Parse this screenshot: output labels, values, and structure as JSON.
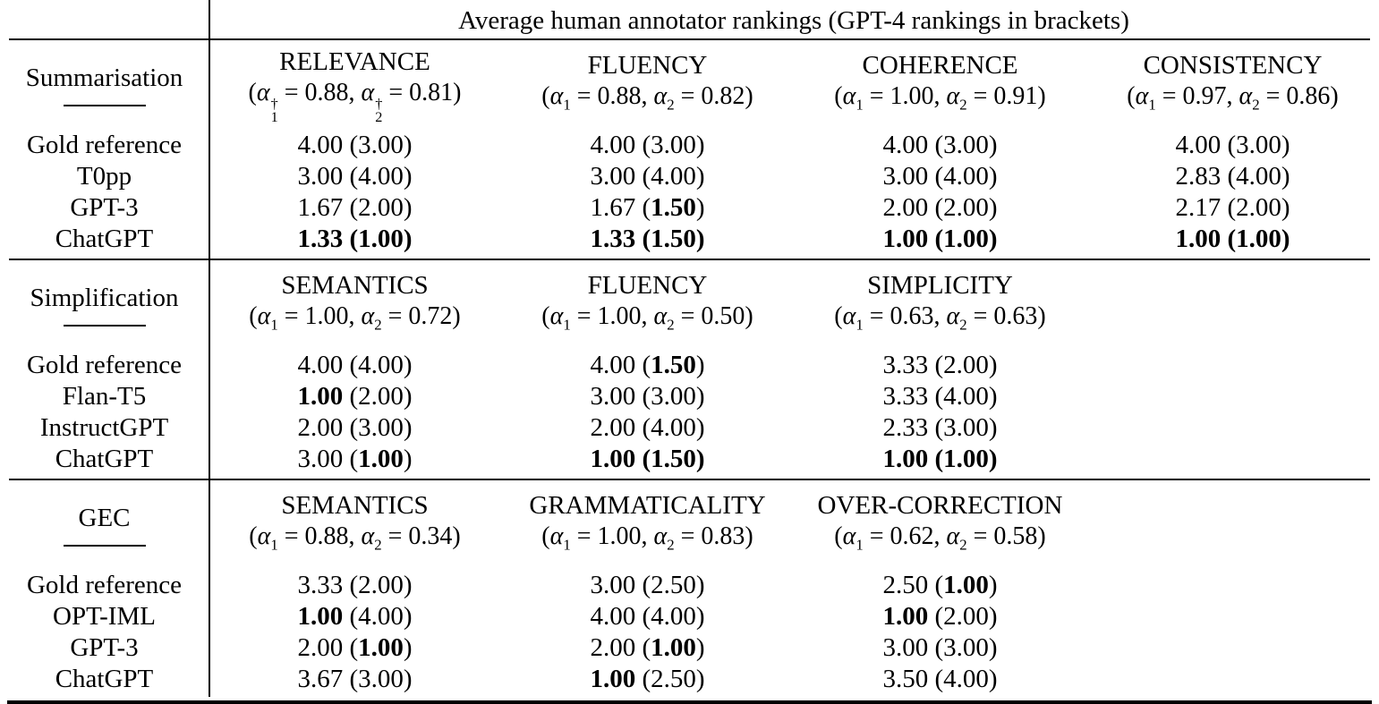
{
  "colors": {
    "text": "#000000",
    "background": "#ffffff",
    "rules": "#000000"
  },
  "math": {
    "alpha": "α",
    "dagger": "†",
    "sub1": "1",
    "sub2": "2",
    "eq": " = ",
    "sep": ", ",
    "open": "(",
    "close": ")",
    "space": " "
  },
  "table": {
    "title": "Average human annotator rankings (GPT-4 rankings in brackets)",
    "sections": [
      {
        "task": "Summarisation",
        "columns": [
          {
            "name": "RELEVANCE",
            "a1": "0.88",
            "a2": "0.81",
            "dagger": true
          },
          {
            "name": "FLUENCY",
            "a1": "0.88",
            "a2": "0.82",
            "dagger": false
          },
          {
            "name": "COHERENCE",
            "a1": "1.00",
            "a2": "0.91",
            "dagger": false
          },
          {
            "name": "CONSISTENCY",
            "a1": "0.97",
            "a2": "0.86",
            "dagger": false
          }
        ],
        "rows": [
          {
            "system": "Gold reference",
            "cells": [
              {
                "v": "4.00",
                "p": "3.00",
                "vb": false,
                "pb": false
              },
              {
                "v": "4.00",
                "p": "3.00",
                "vb": false,
                "pb": false
              },
              {
                "v": "4.00",
                "p": "3.00",
                "vb": false,
                "pb": false
              },
              {
                "v": "4.00",
                "p": "3.00",
                "vb": false,
                "pb": false
              }
            ]
          },
          {
            "system": "T0pp",
            "cells": [
              {
                "v": "3.00",
                "p": "4.00",
                "vb": false,
                "pb": false
              },
              {
                "v": "3.00",
                "p": "4.00",
                "vb": false,
                "pb": false
              },
              {
                "v": "3.00",
                "p": "4.00",
                "vb": false,
                "pb": false
              },
              {
                "v": "2.83",
                "p": "4.00",
                "vb": false,
                "pb": false
              }
            ]
          },
          {
            "system": "GPT-3",
            "cells": [
              {
                "v": "1.67",
                "p": "2.00",
                "vb": false,
                "pb": false
              },
              {
                "v": "1.67",
                "p": "1.50",
                "vb": false,
                "pb": true
              },
              {
                "v": "2.00",
                "p": "2.00",
                "vb": false,
                "pb": false
              },
              {
                "v": "2.17",
                "p": "2.00",
                "vb": false,
                "pb": false
              }
            ]
          },
          {
            "system": "ChatGPT",
            "cells": [
              {
                "v": "1.33",
                "p": "1.00",
                "vb": true,
                "pb": true
              },
              {
                "v": "1.33",
                "p": "1.50",
                "vb": true,
                "pb": true
              },
              {
                "v": "1.00",
                "p": "1.00",
                "vb": true,
                "pb": true
              },
              {
                "v": "1.00",
                "p": "1.00",
                "vb": true,
                "pb": true
              }
            ]
          }
        ]
      },
      {
        "task": "Simplification",
        "columns": [
          {
            "name": "SEMANTICS",
            "a1": "1.00",
            "a2": "0.72",
            "dagger": false
          },
          {
            "name": "FLUENCY",
            "a1": "1.00",
            "a2": "0.50",
            "dagger": false
          },
          {
            "name": "SIMPLICITY",
            "a1": "0.63",
            "a2": "0.63",
            "dagger": false
          }
        ],
        "rows": [
          {
            "system": "Gold reference",
            "cells": [
              {
                "v": "4.00",
                "p": "4.00",
                "vb": false,
                "pb": false
              },
              {
                "v": "4.00",
                "p": "1.50",
                "vb": false,
                "pb": true
              },
              {
                "v": "3.33",
                "p": "2.00",
                "vb": false,
                "pb": false
              }
            ]
          },
          {
            "system": "Flan-T5",
            "cells": [
              {
                "v": "1.00",
                "p": "2.00",
                "vb": true,
                "pb": false
              },
              {
                "v": "3.00",
                "p": "3.00",
                "vb": false,
                "pb": false
              },
              {
                "v": "3.33",
                "p": "4.00",
                "vb": false,
                "pb": false
              }
            ]
          },
          {
            "system": "InstructGPT",
            "cells": [
              {
                "v": "2.00",
                "p": "3.00",
                "vb": false,
                "pb": false
              },
              {
                "v": "2.00",
                "p": "4.00",
                "vb": false,
                "pb": false
              },
              {
                "v": "2.33",
                "p": "3.00",
                "vb": false,
                "pb": false
              }
            ]
          },
          {
            "system": "ChatGPT",
            "cells": [
              {
                "v": "3.00",
                "p": "1.00",
                "vb": false,
                "pb": true
              },
              {
                "v": "1.00",
                "p": "1.50",
                "vb": true,
                "pb": true
              },
              {
                "v": "1.00",
                "p": "1.00",
                "vb": true,
                "pb": true
              }
            ]
          }
        ]
      },
      {
        "task": "GEC",
        "columns": [
          {
            "name": "SEMANTICS",
            "a1": "0.88",
            "a2": "0.34",
            "dagger": false
          },
          {
            "name": "GRAMMATICALITY",
            "a1": "1.00",
            "a2": "0.83",
            "dagger": false
          },
          {
            "name": "OVER-CORRECTION",
            "a1": "0.62",
            "a2": "0.58",
            "dagger": false
          }
        ],
        "rows": [
          {
            "system": "Gold reference",
            "cells": [
              {
                "v": "3.33",
                "p": "2.00",
                "vb": false,
                "pb": false
              },
              {
                "v": "3.00",
                "p": "2.50",
                "vb": false,
                "pb": false
              },
              {
                "v": "2.50",
                "p": "1.00",
                "vb": false,
                "pb": true
              }
            ]
          },
          {
            "system": "OPT-IML",
            "cells": [
              {
                "v": "1.00",
                "p": "4.00",
                "vb": true,
                "pb": false
              },
              {
                "v": "4.00",
                "p": "4.00",
                "vb": false,
                "pb": false
              },
              {
                "v": "1.00",
                "p": "2.00",
                "vb": true,
                "pb": false
              }
            ]
          },
          {
            "system": "GPT-3",
            "cells": [
              {
                "v": "2.00",
                "p": "1.00",
                "vb": false,
                "pb": true
              },
              {
                "v": "2.00",
                "p": "1.00",
                "vb": false,
                "pb": true
              },
              {
                "v": "3.00",
                "p": "3.00",
                "vb": false,
                "pb": false
              }
            ]
          },
          {
            "system": "ChatGPT",
            "cells": [
              {
                "v": "3.67",
                "p": "3.00",
                "vb": false,
                "pb": false
              },
              {
                "v": "1.00",
                "p": "2.50",
                "vb": true,
                "pb": false
              },
              {
                "v": "3.50",
                "p": "4.00",
                "vb": false,
                "pb": false
              }
            ]
          }
        ]
      }
    ]
  }
}
